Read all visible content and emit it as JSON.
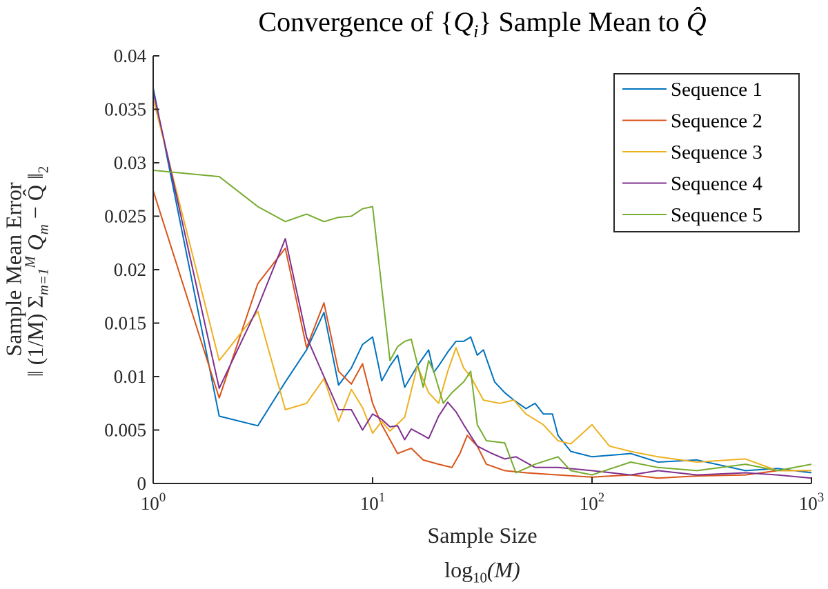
{
  "chart_data": {
    "type": "line",
    "title": "Convergence of {Q_i} Sample Mean to Q̂",
    "title_parts": {
      "before": "Convergence of {",
      "var": "Q",
      "sub": "i",
      "mid": "} Sample Mean to ",
      "hat": "Q̂"
    },
    "xlabel": [
      "Sample Size",
      "log10(M)"
    ],
    "xlabel_parts": {
      "line1": "Sample Size",
      "fn": "log",
      "base": "10",
      "arg": "(M)"
    },
    "ylabel": [
      "Sample Mean Error",
      "‖(1/M) Σ_{m=1}^{M} Q_m − Q̂‖₂"
    ],
    "ylabel_parts": {
      "line1": "Sample Mean Error",
      "line2": "‖ (1/M) Σ",
      "sub": "m=1",
      "sup": "M",
      "rest": " Q",
      "rest_sub": "m",
      "tail": " − Q̂ ‖",
      "norm": "2"
    },
    "x_scale": "log",
    "xlim": [
      1,
      1000
    ],
    "ylim": [
      0,
      0.04
    ],
    "x_ticks": [
      {
        "base": "10",
        "exp": "0",
        "value": 1
      },
      {
        "base": "10",
        "exp": "1",
        "value": 10
      },
      {
        "base": "10",
        "exp": "2",
        "value": 100
      },
      {
        "base": "10",
        "exp": "3",
        "value": 1000
      }
    ],
    "y_ticks": [
      {
        "label": "0",
        "value": 0
      },
      {
        "label": "0.005",
        "value": 0.005
      },
      {
        "label": "0.01",
        "value": 0.01
      },
      {
        "label": "0.015",
        "value": 0.015
      },
      {
        "label": "0.02",
        "value": 0.02
      },
      {
        "label": "0.025",
        "value": 0.025
      },
      {
        "label": "0.03",
        "value": 0.03
      },
      {
        "label": "0.035",
        "value": 0.035
      },
      {
        "label": "0.04",
        "value": 0.04
      }
    ],
    "grid": false,
    "legend_position": "top-right",
    "series": [
      {
        "name": "Sequence 1",
        "color": "#0072BD",
        "x": [
          1,
          2,
          3,
          4,
          5,
          6,
          7,
          8,
          9,
          10,
          11,
          12,
          13,
          14,
          16,
          18,
          19,
          20,
          22,
          24,
          26,
          28,
          30,
          32,
          36,
          40,
          44,
          50,
          55,
          60,
          66,
          70,
          80,
          100,
          150,
          200,
          300,
          500,
          700,
          1000
        ],
        "y": [
          0.037,
          0.0063,
          0.0054,
          0.0095,
          0.0125,
          0.016,
          0.0092,
          0.0108,
          0.013,
          0.0137,
          0.0096,
          0.011,
          0.012,
          0.009,
          0.011,
          0.0125,
          0.0104,
          0.011,
          0.0123,
          0.0133,
          0.0133,
          0.0137,
          0.012,
          0.0125,
          0.0095,
          0.0085,
          0.0078,
          0.007,
          0.0075,
          0.0065,
          0.0065,
          0.0045,
          0.003,
          0.0025,
          0.0028,
          0.002,
          0.0022,
          0.0012,
          0.0014,
          0.001
        ]
      },
      {
        "name": "Sequence 2",
        "color": "#D95319",
        "x": [
          1,
          2,
          3,
          4,
          5,
          6,
          7,
          8,
          9,
          10,
          11,
          13,
          15,
          17,
          20,
          23,
          25,
          27,
          30,
          33,
          40,
          50,
          70,
          100,
          150,
          200,
          300,
          500,
          700,
          1000
        ],
        "y": [
          0.0274,
          0.008,
          0.0187,
          0.022,
          0.0127,
          0.0169,
          0.0105,
          0.0093,
          0.0112,
          0.0075,
          0.0055,
          0.0028,
          0.0033,
          0.0022,
          0.0018,
          0.0015,
          0.0028,
          0.0045,
          0.0035,
          0.0018,
          0.0012,
          0.001,
          0.0008,
          0.0006,
          0.0008,
          0.0005,
          0.0007,
          0.0008,
          0.0012,
          0.0012
        ]
      },
      {
        "name": "Sequence 3",
        "color": "#EDB120",
        "x": [
          1,
          2,
          3,
          4,
          5,
          6,
          7,
          8,
          9,
          10,
          11,
          12,
          14,
          16,
          18,
          20,
          22,
          24,
          26,
          28,
          32,
          38,
          44,
          50,
          60,
          70,
          80,
          100,
          120,
          150,
          200,
          300,
          500,
          700,
          1000
        ],
        "y": [
          0.036,
          0.0115,
          0.0161,
          0.0069,
          0.0075,
          0.0098,
          0.0058,
          0.0088,
          0.0071,
          0.0047,
          0.0058,
          0.0049,
          0.0062,
          0.011,
          0.0085,
          0.0075,
          0.0105,
          0.0127,
          0.0108,
          0.01,
          0.0078,
          0.0075,
          0.0078,
          0.0065,
          0.0055,
          0.004,
          0.0037,
          0.0055,
          0.0035,
          0.003,
          0.0025,
          0.002,
          0.0023,
          0.0012,
          0.0012
        ]
      },
      {
        "name": "Sequence 4",
        "color": "#7E2F8E",
        "x": [
          1,
          2,
          3,
          4,
          5,
          6,
          7,
          8,
          9,
          10,
          11,
          12,
          13,
          14,
          15,
          17,
          18,
          20,
          22,
          24,
          26,
          30,
          35,
          40,
          45,
          55,
          70,
          100,
          150,
          200,
          300,
          500,
          700,
          1000
        ],
        "y": [
          0.0367,
          0.0089,
          0.0165,
          0.0229,
          0.0137,
          0.01,
          0.0069,
          0.0069,
          0.005,
          0.0065,
          0.006,
          0.0053,
          0.0054,
          0.0041,
          0.0051,
          0.0045,
          0.0042,
          0.0063,
          0.0076,
          0.0067,
          0.0055,
          0.0035,
          0.0028,
          0.0023,
          0.0025,
          0.0015,
          0.0015,
          0.0012,
          0.0008,
          0.0012,
          0.0008,
          0.001,
          0.0008,
          0.0005
        ]
      },
      {
        "name": "Sequence 5",
        "color": "#77AC30",
        "x": [
          1,
          2,
          3,
          4,
          5,
          6,
          7,
          8,
          9,
          10,
          12,
          13,
          14,
          15,
          17,
          18,
          19,
          21,
          23,
          26,
          28,
          30,
          33,
          40,
          45,
          55,
          70,
          80,
          100,
          150,
          200,
          300,
          500,
          700,
          1000
        ],
        "y": [
          0.0293,
          0.0287,
          0.0259,
          0.0245,
          0.0252,
          0.0245,
          0.0249,
          0.025,
          0.0257,
          0.0259,
          0.0115,
          0.0128,
          0.0133,
          0.0135,
          0.009,
          0.0115,
          0.0105,
          0.0075,
          0.0085,
          0.0095,
          0.0105,
          0.0055,
          0.004,
          0.0038,
          0.001,
          0.0018,
          0.0025,
          0.0012,
          0.0008,
          0.002,
          0.0015,
          0.0012,
          0.0018,
          0.0012,
          0.0018
        ]
      }
    ]
  }
}
